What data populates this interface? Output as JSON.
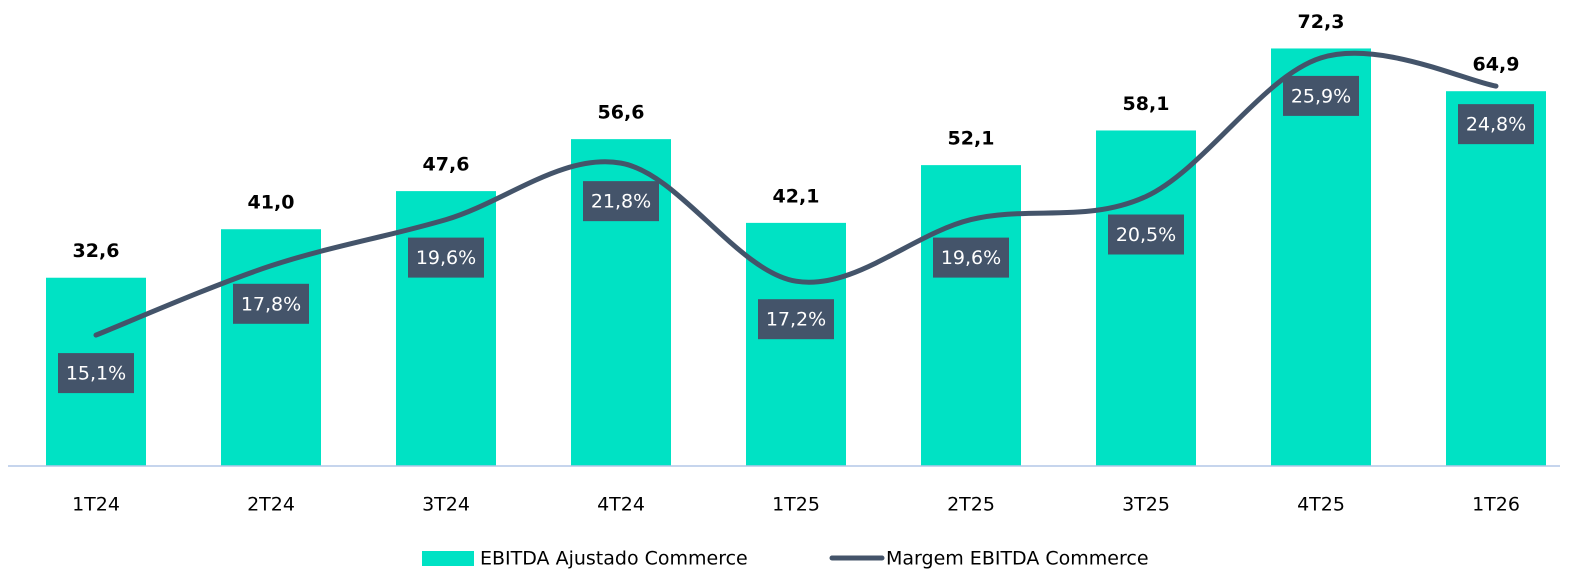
{
  "chart_data": {
    "type": "bar-line",
    "categories": [
      "1T24",
      "2T24",
      "3T24",
      "4T24",
      "1T25",
      "2T25",
      "3T25",
      "4T25",
      "1T26"
    ],
    "series": [
      {
        "name": "EBITDA Ajustado Commerce",
        "type": "bar",
        "color": "#00e2c4",
        "values": [
          32.6,
          41.0,
          47.6,
          56.6,
          42.1,
          52.1,
          58.1,
          72.3,
          64.9
        ],
        "value_labels": [
          "32,6",
          "41,0",
          "47,6",
          "56,6",
          "42,1",
          "52,1",
          "58,1",
          "72,3",
          "64,9"
        ]
      },
      {
        "name": "Margem EBITDA Commerce",
        "type": "line",
        "axis": "y2",
        "color": "#44546a",
        "smooth": true,
        "values": [
          15.1,
          17.8,
          19.6,
          21.8,
          17.2,
          19.6,
          20.5,
          25.9,
          24.8
        ],
        "value_labels": [
          "15,1%",
          "17,8%",
          "19,6%",
          "21,8%",
          "17,2%",
          "19,6%",
          "20,5%",
          "25,9%",
          "24,8%"
        ]
      }
    ],
    "ylim": [
      0,
      80
    ],
    "y2lim": [
      10,
      28
    ],
    "legend": "bottom"
  }
}
